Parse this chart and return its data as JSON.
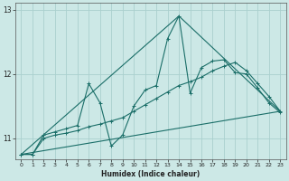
{
  "xlabel": "Humidex (Indice chaleur)",
  "bg_color": "#cce8e6",
  "grid_color": "#aad0ce",
  "line_color": "#1a6e68",
  "xlim": [
    -0.5,
    23.5
  ],
  "ylim": [
    10.68,
    13.1
  ],
  "yticks": [
    11,
    12,
    13
  ],
  "xticks": [
    0,
    1,
    2,
    3,
    4,
    5,
    6,
    7,
    8,
    9,
    10,
    11,
    12,
    13,
    14,
    15,
    16,
    17,
    18,
    19,
    20,
    21,
    22,
    23
  ],
  "line1_x": [
    0,
    1,
    2,
    3,
    4,
    5,
    6,
    7,
    8,
    9,
    10,
    11,
    12,
    13,
    14,
    15,
    16,
    17,
    18,
    19,
    20,
    21,
    22,
    23
  ],
  "line1_y": [
    10.75,
    10.75,
    11.05,
    11.1,
    11.15,
    11.2,
    11.85,
    11.55,
    10.88,
    11.05,
    11.5,
    11.75,
    11.82,
    12.55,
    12.9,
    11.7,
    12.1,
    12.2,
    12.22,
    12.02,
    12.0,
    11.78,
    11.55,
    11.4
  ],
  "line2_x": [
    0,
    1,
    2,
    3,
    4,
    5,
    6,
    7,
    8,
    9,
    10,
    11,
    12,
    13,
    14,
    15,
    16,
    17,
    18,
    19,
    20,
    21,
    22,
    23
  ],
  "line2_y": [
    10.75,
    10.75,
    11.0,
    11.05,
    11.08,
    11.12,
    11.18,
    11.22,
    11.27,
    11.32,
    11.42,
    11.52,
    11.62,
    11.72,
    11.82,
    11.88,
    11.95,
    12.05,
    12.12,
    12.18,
    12.05,
    11.85,
    11.65,
    11.42
  ],
  "line3_x": [
    0,
    23
  ],
  "line3_y": [
    10.75,
    11.42
  ],
  "line4_x": [
    0,
    14,
    23
  ],
  "line4_y": [
    10.75,
    12.9,
    11.42
  ]
}
